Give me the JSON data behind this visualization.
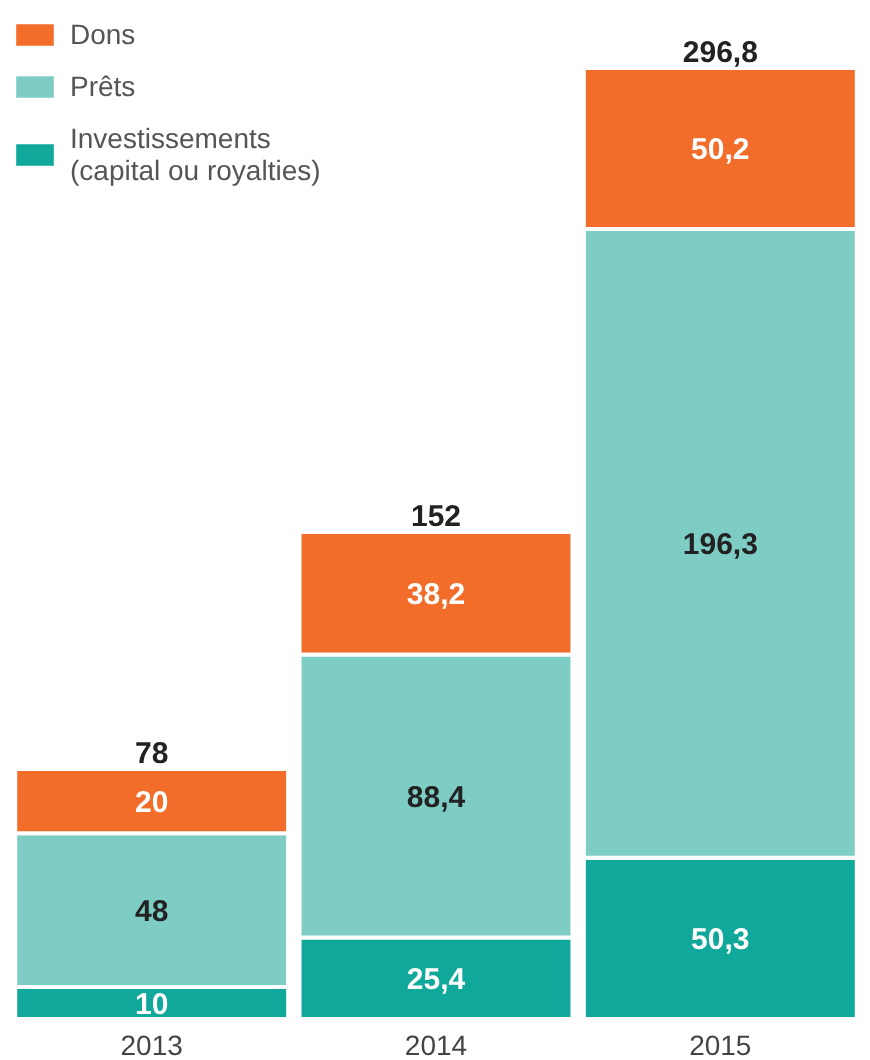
{
  "chart_data": {
    "type": "bar",
    "stacked": true,
    "legend": "top left",
    "categories": [
      "2013",
      "2014",
      "2015"
    ],
    "series": [
      {
        "name": "Investissements\n(capital ou royalties)",
        "color": "#0fa89a",
        "values": [
          10,
          25.4,
          50.3
        ],
        "value_labels": [
          "10",
          "25,4",
          "50,3"
        ]
      },
      {
        "name": "Prêts",
        "color": "#7ecdc4",
        "values": [
          48,
          88.4,
          196.3
        ],
        "value_labels": [
          "48",
          "88,4",
          "196,3"
        ]
      },
      {
        "name": "Dons",
        "color": "#f26c2a",
        "values": [
          20,
          38.2,
          50.2
        ],
        "value_labels": [
          "20",
          "38,2",
          "50,2"
        ]
      }
    ],
    "totals": [
      "78",
      "152",
      "296,8"
    ]
  }
}
